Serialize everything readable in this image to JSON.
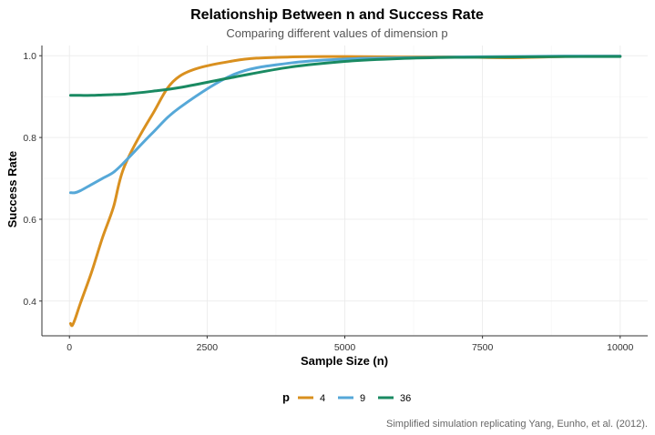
{
  "chart_data": {
    "type": "line",
    "title": "Relationship Between n and Success Rate",
    "subtitle": "Comparing different values of dimension p",
    "xlabel": "Sample Size (n)",
    "ylabel": "Success Rate",
    "caption": "Simplified simulation replicating Yang, Eunho, et al. (2012).",
    "xlim": [
      -500,
      10500
    ],
    "ylim": [
      0.315,
      1.025
    ],
    "xticks": [
      0,
      2500,
      5000,
      7500,
      10000
    ],
    "xtick_labels": [
      "0",
      "2500",
      "5000",
      "7500",
      "10000"
    ],
    "yticks": [
      0.4,
      0.6,
      0.8,
      1.0
    ],
    "ytick_labels": [
      "0.4",
      "0.6",
      "0.8",
      "1.0"
    ],
    "grid": true,
    "legend_title": "p",
    "legend_position": "bottom",
    "series": [
      {
        "name": "4",
        "color": "#D9901F",
        "x": [
          20,
          50,
          100,
          200,
          400,
          600,
          800,
          1000,
          1500,
          2000,
          3000,
          4000,
          5000,
          6000,
          7000,
          8000,
          9000,
          10000
        ],
        "y": [
          0.345,
          0.34,
          0.355,
          0.395,
          0.47,
          0.555,
          0.63,
          0.73,
          0.855,
          0.95,
          0.988,
          0.997,
          0.998,
          0.997,
          0.997,
          0.995,
          0.998,
          0.999
        ]
      },
      {
        "name": "9",
        "color": "#56A8D8",
        "x": [
          20,
          100,
          200,
          400,
          600,
          800,
          1000,
          1500,
          2000,
          3000,
          4000,
          5000,
          6000,
          7000,
          8000,
          9000,
          10000
        ],
        "y": [
          0.665,
          0.665,
          0.67,
          0.685,
          0.7,
          0.715,
          0.74,
          0.81,
          0.873,
          0.955,
          0.982,
          0.992,
          0.995,
          0.997,
          0.998,
          0.999,
          0.999
        ]
      },
      {
        "name": "36",
        "color": "#1A8A62",
        "x": [
          20,
          100,
          200,
          400,
          600,
          800,
          1000,
          1500,
          2000,
          3000,
          4000,
          5000,
          6000,
          7000,
          8000,
          9000,
          10000
        ],
        "y": [
          0.903,
          0.903,
          0.903,
          0.903,
          0.904,
          0.905,
          0.906,
          0.913,
          0.922,
          0.948,
          0.972,
          0.986,
          0.993,
          0.996,
          0.997,
          0.998,
          0.998
        ]
      }
    ]
  }
}
